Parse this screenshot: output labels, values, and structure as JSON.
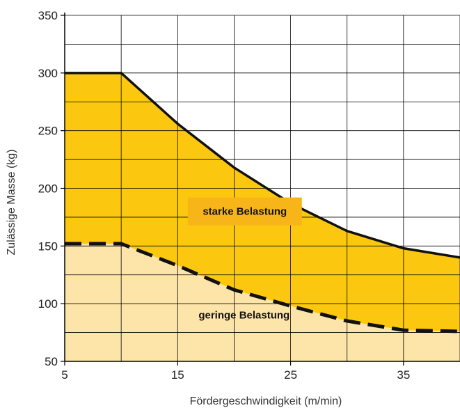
{
  "chart_data": {
    "type": "area",
    "title": "",
    "xlabel": "Fördergeschwindigkeit (m/min)",
    "ylabel": "Zulässige Masse (kg)",
    "xlim": [
      5,
      40
    ],
    "ylim": [
      50,
      350
    ],
    "x_ticks": [
      5,
      15,
      25,
      35
    ],
    "y_ticks": [
      50,
      100,
      150,
      200,
      250,
      300,
      350
    ],
    "grid": true,
    "colors": {
      "upper_fill": "#fcc80f",
      "lower_fill": "#fde5a9",
      "label_box": "#f7b519",
      "line": "#111111",
      "grid": "#000000"
    },
    "series": [
      {
        "name": "starke Belastung",
        "style": "solid",
        "x": [
          5,
          10,
          15,
          20,
          25,
          30,
          35,
          40
        ],
        "y": [
          300,
          300,
          256,
          218,
          187,
          163,
          148,
          140
        ]
      },
      {
        "name": "geringe Belastung",
        "style": "dashed",
        "x": [
          5,
          10,
          15,
          20,
          25,
          30,
          35,
          40
        ],
        "y": [
          152,
          152,
          133,
          112,
          98,
          85,
          77,
          76
        ]
      }
    ],
    "annotations": [
      {
        "text": "starke Belastung",
        "x": 20.7,
        "y": 180
      },
      {
        "text": "geringe Belastung",
        "x": 20.7,
        "y": 90
      }
    ]
  }
}
